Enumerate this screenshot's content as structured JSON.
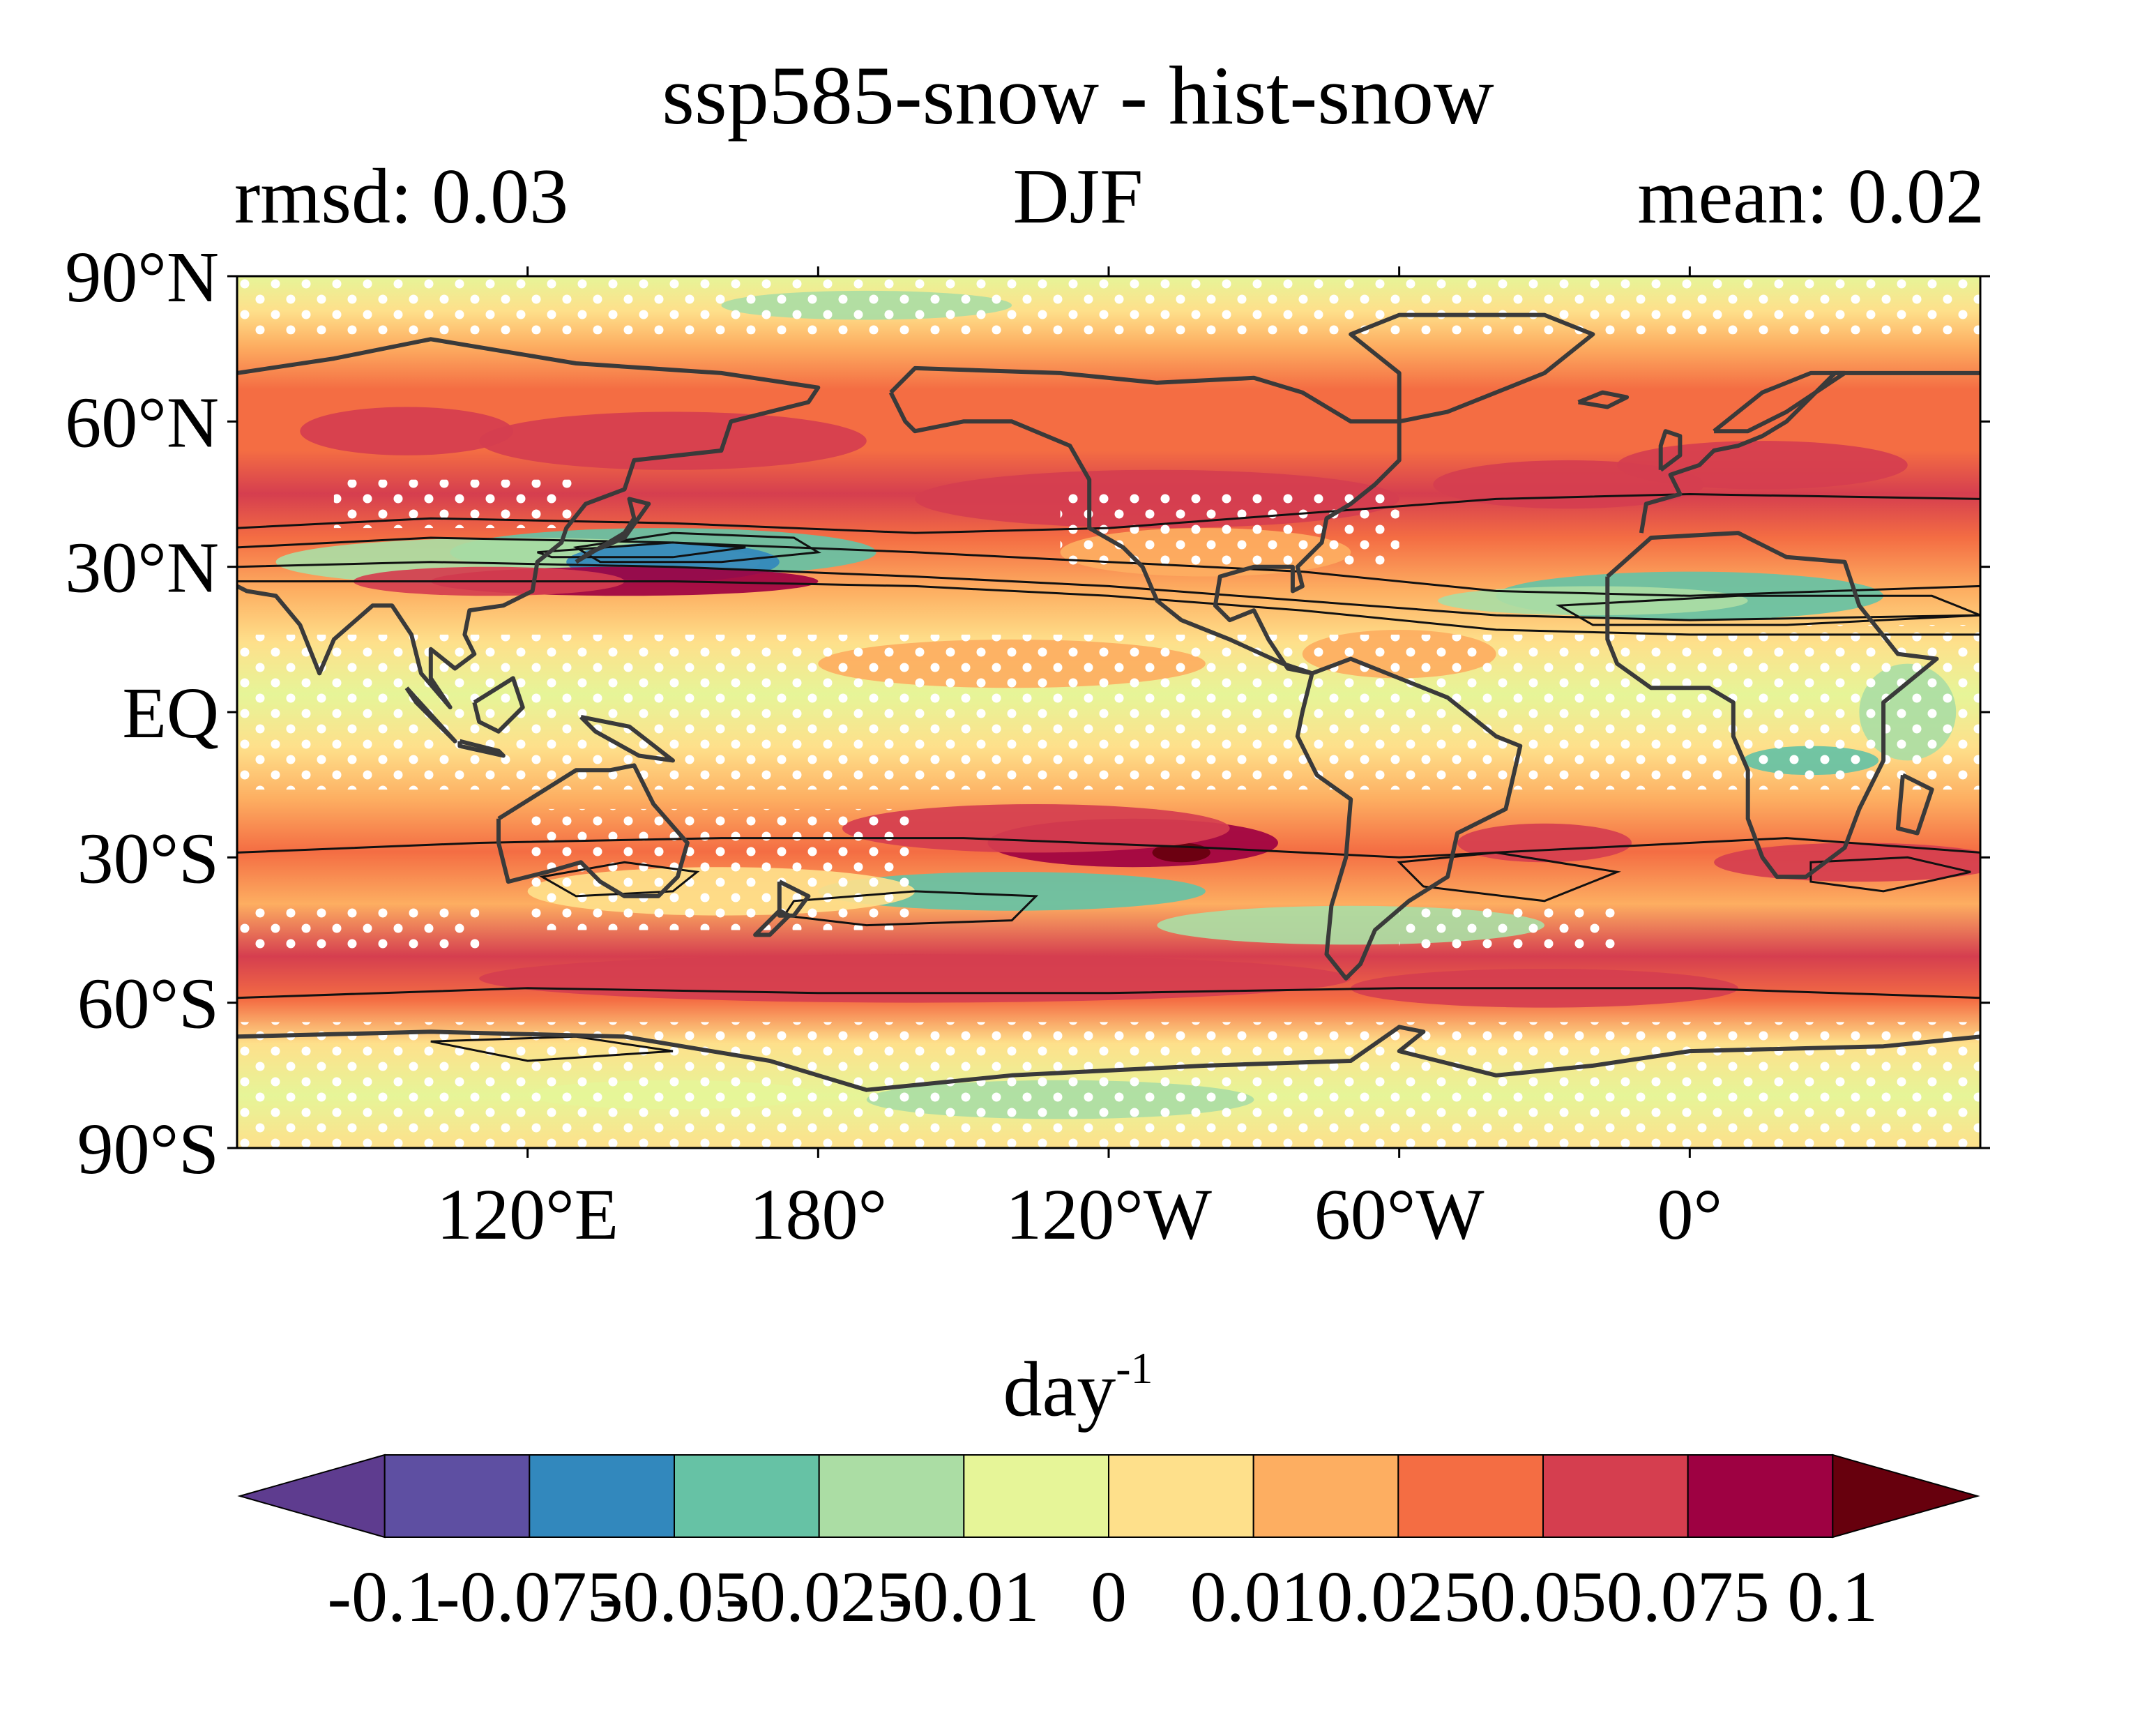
{
  "figure": {
    "title": "ssp585-snow - hist-snow",
    "subtitle_left": "rmsd: 0.03",
    "subtitle_center": "DJF",
    "subtitle_right": "mean: 0.02"
  },
  "chart_data": {
    "type": "heatmap",
    "title": "ssp585-snow - hist-snow",
    "season": "DJF",
    "stats": {
      "rmsd": 0.03,
      "mean": 0.02
    },
    "projection": "PlateCarree",
    "lon_range": [
      60,
      420
    ],
    "lat_range": [
      -90,
      90
    ],
    "x_ticks": [
      {
        "lon": 120,
        "label": "120°E"
      },
      {
        "lon": 180,
        "label": "180°"
      },
      {
        "lon": 240,
        "label": "120°W"
      },
      {
        "lon": 300,
        "label": "60°W"
      },
      {
        "lon": 360,
        "label": "0°"
      }
    ],
    "y_ticks": [
      {
        "lat": 90,
        "label": "90°N"
      },
      {
        "lat": 60,
        "label": "60°N"
      },
      {
        "lat": 30,
        "label": "30°N"
      },
      {
        "lat": 0,
        "label": "EQ"
      },
      {
        "lat": -30,
        "label": "30°S"
      },
      {
        "lat": -60,
        "label": "60°S"
      },
      {
        "lat": -90,
        "label": "90°S"
      }
    ],
    "colorbar": {
      "units_base": "day",
      "units_exponent": "-1",
      "levels": [
        -0.1,
        -0.075,
        -0.05,
        -0.025,
        -0.01,
        0,
        0.01,
        0.025,
        0.05,
        0.075,
        0.1
      ],
      "tick_labels": [
        "-0.1",
        "-0.075",
        "-0.05",
        "-0.025",
        "-0.01",
        "0",
        "0.01",
        "0.025",
        "0.05",
        "0.075",
        "0.1"
      ],
      "colors": [
        "#5e4fa2",
        "#3288bd",
        "#66c2a5",
        "#abdda4",
        "#e6f598",
        "#fee08b",
        "#fdae61",
        "#f46d43",
        "#d53e4f",
        "#9e0142"
      ],
      "under_color": "#5e3c8f",
      "over_color": "#67000d",
      "extend": "both"
    },
    "stippling": "white dots mark grid points that are not statistically significant",
    "contours": "black lines show the historical snowfall climatology",
    "colors": {
      "land_outline": "#3a3a3a",
      "contour": "#111111",
      "stipple": "#ffffff",
      "frame": "#000000"
    }
  }
}
